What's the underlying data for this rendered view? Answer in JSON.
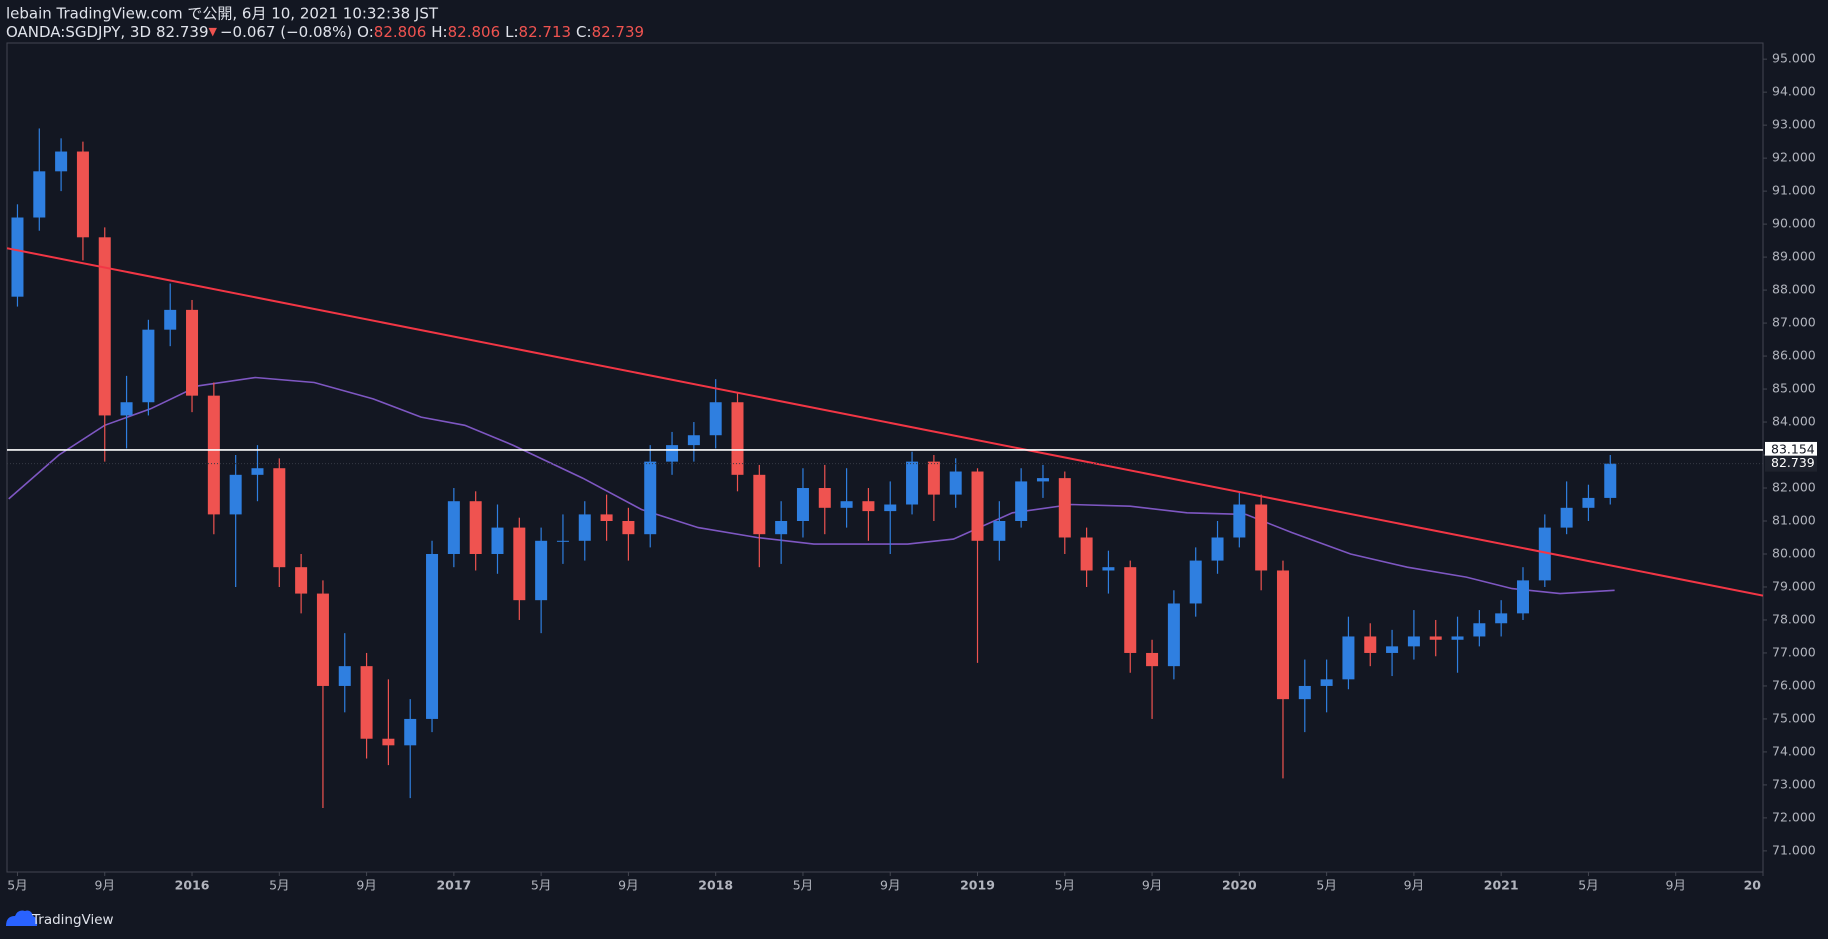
{
  "header": {
    "title": "lebain TradingView.com で公開, 6月 10, 2021 10:32:38 JST",
    "symbol": "OANDA:SGDJPY, 3D",
    "arrow": "▼",
    "change": "−0.067 (−0.08%)",
    "ohlc": [
      {
        "label": "O:",
        "value": "82.806"
      },
      {
        "label": "H:",
        "value": "82.806"
      },
      {
        "label": "L:",
        "value": "82.713"
      },
      {
        "label": "C:",
        "value": "82.739"
      }
    ]
  },
  "footer": {
    "brand": "TradingView"
  },
  "chart_data": {
    "type": "candlestick",
    "up_color": "#2f7fe0",
    "down_color": "#ef5350",
    "background": "#131722",
    "x": [
      4,
      5,
      6,
      7,
      8,
      9,
      10,
      11,
      12,
      13,
      14,
      15,
      16,
      17,
      18,
      19,
      20,
      21,
      22,
      23,
      24,
      25,
      26,
      27,
      28,
      29,
      30,
      31,
      32,
      33,
      34,
      35,
      36,
      37,
      38,
      39,
      40,
      41,
      42,
      43,
      44,
      45,
      46,
      47,
      48,
      49,
      50,
      51,
      52,
      53,
      54,
      55,
      56,
      57,
      58,
      59,
      60,
      61,
      62,
      63,
      64,
      65,
      66,
      67,
      68,
      69,
      70,
      71,
      72,
      73,
      74,
      75,
      76,
      77
    ],
    "open": [
      87.8,
      90.2,
      91.6,
      92.2,
      89.6,
      84.2,
      84.6,
      86.8,
      87.4,
      84.8,
      81.2,
      82.4,
      82.6,
      79.6,
      78.8,
      76.0,
      76.6,
      74.4,
      74.2,
      75.0,
      80.0,
      81.6,
      80.0,
      80.8,
      78.6,
      80.4,
      80.4,
      81.2,
      81.0,
      80.6,
      82.8,
      83.3,
      83.6,
      84.6,
      82.4,
      80.6,
      81.0,
      82.0,
      81.4,
      81.6,
      81.3,
      81.5,
      82.8,
      81.8,
      82.5,
      80.4,
      81.0,
      82.2,
      82.3,
      80.5,
      79.5,
      79.6,
      77.0,
      76.6,
      78.5,
      79.8,
      80.5,
      81.5,
      79.5,
      75.6,
      76.0,
      76.2,
      77.5,
      77.0,
      77.2,
      77.5,
      77.4,
      77.5,
      77.9,
      78.2,
      79.2,
      80.8,
      81.4,
      81.7
    ],
    "high": [
      90.6,
      92.9,
      92.6,
      92.5,
      89.9,
      85.4,
      87.1,
      88.2,
      87.7,
      85.2,
      83.0,
      83.3,
      82.9,
      80.0,
      79.2,
      77.6,
      77.0,
      76.2,
      75.6,
      80.4,
      82.0,
      81.9,
      81.5,
      81.1,
      80.8,
      81.2,
      81.6,
      81.8,
      81.4,
      83.3,
      83.7,
      84.0,
      85.3,
      84.9,
      82.7,
      81.6,
      82.6,
      82.7,
      82.6,
      82.0,
      82.2,
      83.1,
      83.0,
      82.9,
      82.6,
      81.6,
      82.6,
      82.7,
      82.5,
      80.8,
      80.1,
      79.8,
      77.4,
      78.9,
      80.2,
      81.0,
      81.9,
      81.8,
      79.8,
      76.8,
      76.8,
      78.1,
      77.9,
      77.7,
      78.3,
      78.0,
      78.1,
      78.3,
      78.6,
      79.6,
      81.2,
      82.2,
      82.1,
      83.0
    ],
    "low": [
      87.5,
      89.8,
      91.0,
      88.9,
      82.8,
      83.2,
      84.2,
      86.3,
      84.3,
      80.6,
      79.0,
      81.6,
      79.0,
      78.2,
      72.3,
      75.2,
      73.8,
      73.6,
      72.6,
      74.6,
      79.6,
      79.5,
      79.4,
      78.0,
      77.6,
      79.7,
      79.8,
      80.4,
      79.8,
      80.2,
      82.4,
      82.8,
      83.2,
      81.9,
      79.6,
      79.7,
      80.5,
      80.6,
      80.8,
      80.4,
      80.0,
      81.2,
      81.0,
      81.4,
      76.7,
      79.8,
      80.8,
      81.7,
      80.0,
      79.0,
      78.8,
      76.4,
      75.0,
      76.2,
      78.1,
      79.4,
      80.2,
      78.9,
      73.2,
      74.6,
      75.2,
      75.9,
      76.6,
      76.3,
      76.8,
      76.9,
      76.4,
      77.2,
      77.5,
      78.0,
      79.0,
      80.6,
      81.0,
      81.5
    ],
    "close": [
      90.2,
      91.6,
      92.2,
      89.6,
      84.2,
      84.6,
      86.8,
      87.4,
      84.8,
      81.2,
      82.4,
      82.6,
      79.6,
      78.8,
      76.0,
      76.6,
      74.4,
      74.2,
      75.0,
      80.0,
      81.6,
      80.0,
      80.8,
      78.6,
      80.4,
      80.4,
      81.2,
      81.0,
      80.6,
      82.8,
      83.3,
      83.6,
      84.6,
      82.4,
      80.6,
      81.0,
      82.0,
      81.4,
      81.6,
      81.3,
      81.5,
      82.8,
      81.8,
      82.5,
      80.4,
      81.0,
      82.2,
      82.3,
      80.5,
      79.5,
      79.6,
      77.0,
      76.6,
      78.5,
      79.8,
      80.5,
      81.5,
      79.5,
      75.6,
      76.0,
      76.2,
      77.5,
      77.0,
      77.2,
      77.5,
      77.4,
      77.5,
      77.9,
      78.2,
      79.2,
      80.8,
      81.4,
      81.7,
      82.739
    ],
    "ma": {
      "color": "#7e57c2",
      "x": [
        3.6,
        5.9,
        8,
        10.1,
        12.3,
        14.9,
        17.6,
        20.3,
        22.5,
        24.5,
        26.7,
        29.9,
        32.6,
        35.2,
        37.9,
        40.5,
        44.8,
        46.9,
        49.6,
        52.3,
        55,
        57.6,
        60.3,
        62.4,
        65.1,
        67.7,
        70.4,
        72.5,
        74.7,
        77.2
      ],
      "values": [
        81.67,
        83.0,
        83.9,
        84.4,
        85.1,
        85.35,
        85.2,
        84.7,
        84.15,
        83.9,
        83.3,
        82.3,
        81.35,
        80.8,
        80.5,
        80.3,
        80.3,
        80.45,
        81.25,
        81.5,
        81.45,
        81.25,
        81.2,
        80.65,
        80.0,
        79.6,
        79.3,
        78.95,
        78.8,
        78.9
      ]
    },
    "trendline": {
      "color": "#f23645",
      "x": [
        3.52,
        84
      ],
      "values": [
        89.27,
        78.74
      ]
    },
    "hline": {
      "color": "#ffffff",
      "value": 83.154
    },
    "xlim": [
      3.52,
      84
    ],
    "ylim": [
      70.36,
      95.49
    ],
    "xticks": [
      {
        "value": 4,
        "label": "5月"
      },
      {
        "value": 8,
        "label": "9月"
      },
      {
        "value": 12,
        "label": "2016"
      },
      {
        "value": 16,
        "label": "5月"
      },
      {
        "value": 20,
        "label": "9月"
      },
      {
        "value": 24,
        "label": "2017"
      },
      {
        "value": 28,
        "label": "5月"
      },
      {
        "value": 32,
        "label": "9月"
      },
      {
        "value": 36,
        "label": "2018"
      },
      {
        "value": 40,
        "label": "5月"
      },
      {
        "value": 44,
        "label": "9月"
      },
      {
        "value": 48,
        "label": "2019"
      },
      {
        "value": 52,
        "label": "5月"
      },
      {
        "value": 56,
        "label": "9月"
      },
      {
        "value": 60,
        "label": "2020"
      },
      {
        "value": 64,
        "label": "5月"
      },
      {
        "value": 68,
        "label": "9月"
      },
      {
        "value": 72,
        "label": "2021"
      },
      {
        "value": 76,
        "label": "5月"
      },
      {
        "value": 80,
        "label": "9月"
      },
      {
        "value": 84,
        "label": "20"
      }
    ],
    "yticks": [
      {
        "value": 71,
        "label": "71.000"
      },
      {
        "value": 72,
        "label": "72.000"
      },
      {
        "value": 73,
        "label": "73.000"
      },
      {
        "value": 74,
        "label": "74.000"
      },
      {
        "value": 75,
        "label": "75.000"
      },
      {
        "value": 76,
        "label": "76.000"
      },
      {
        "value": 77,
        "label": "77.000"
      },
      {
        "value": 78,
        "label": "78.000"
      },
      {
        "value": 79,
        "label": "79.000"
      },
      {
        "value": 80,
        "label": "80.000"
      },
      {
        "value": 81,
        "label": "81.000"
      },
      {
        "value": 82,
        "label": "82.000"
      },
      {
        "value": 83,
        "label": "83.000"
      },
      {
        "value": 84,
        "label": "84.000"
      },
      {
        "value": 85,
        "label": "85.000"
      },
      {
        "value": 86,
        "label": "86.000"
      },
      {
        "value": 87,
        "label": "87.000"
      },
      {
        "value": 88,
        "label": "88.000"
      },
      {
        "value": 89,
        "label": "89.000"
      },
      {
        "value": 90,
        "label": "90.000"
      },
      {
        "value": 91,
        "label": "91.000"
      },
      {
        "value": 92,
        "label": "92.000"
      },
      {
        "value": 93,
        "label": "93.000"
      },
      {
        "value": 94,
        "label": "94.000"
      },
      {
        "value": 95,
        "label": "95.000"
      }
    ]
  }
}
